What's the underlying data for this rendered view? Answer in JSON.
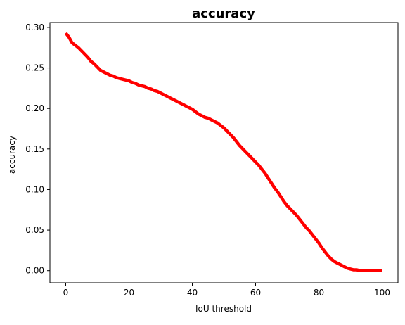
{
  "chart_data": {
    "type": "line",
    "title": "accuracy",
    "xlabel": "IoU threshold",
    "ylabel": "accuracy",
    "xlim": [
      -5,
      105
    ],
    "ylim": [
      -0.015,
      0.306
    ],
    "xticks": [
      0,
      20,
      40,
      60,
      80,
      100
    ],
    "yticks": [
      0.0,
      0.05,
      0.1,
      0.15,
      0.2,
      0.25,
      0.3
    ],
    "ytick_labels": [
      "0.00",
      "0.05",
      "0.10",
      "0.15",
      "0.20",
      "0.25",
      "0.30"
    ],
    "grid": false,
    "legend": "none",
    "series": [
      {
        "color": "#ff0000",
        "x": [
          0,
          1,
          2,
          3,
          4,
          5,
          6,
          7,
          8,
          9,
          10,
          11,
          12,
          13,
          14,
          15,
          16,
          17,
          18,
          19,
          20,
          21,
          22,
          23,
          24,
          25,
          26,
          27,
          28,
          29,
          30,
          31,
          32,
          33,
          34,
          35,
          36,
          37,
          38,
          39,
          40,
          41,
          42,
          43,
          44,
          45,
          46,
          47,
          48,
          49,
          50,
          51,
          52,
          53,
          54,
          55,
          56,
          57,
          58,
          59,
          60,
          61,
          62,
          63,
          64,
          65,
          66,
          67,
          68,
          69,
          70,
          71,
          72,
          73,
          74,
          75,
          76,
          77,
          78,
          79,
          80,
          81,
          82,
          83,
          84,
          85,
          86,
          87,
          88,
          89,
          90,
          91,
          92,
          93,
          94,
          95,
          96,
          97,
          98,
          99,
          100
        ],
        "y": [
          0.293,
          0.288,
          0.281,
          0.278,
          0.275,
          0.271,
          0.267,
          0.263,
          0.258,
          0.255,
          0.251,
          0.247,
          0.245,
          0.243,
          0.241,
          0.24,
          0.238,
          0.237,
          0.236,
          0.235,
          0.234,
          0.232,
          0.231,
          0.229,
          0.228,
          0.227,
          0.225,
          0.224,
          0.222,
          0.221,
          0.219,
          0.217,
          0.215,
          0.213,
          0.211,
          0.209,
          0.207,
          0.205,
          0.203,
          0.201,
          0.199,
          0.196,
          0.193,
          0.191,
          0.189,
          0.188,
          0.186,
          0.184,
          0.182,
          0.179,
          0.176,
          0.172,
          0.168,
          0.164,
          0.159,
          0.154,
          0.15,
          0.146,
          0.142,
          0.138,
          0.134,
          0.13,
          0.125,
          0.12,
          0.114,
          0.108,
          0.102,
          0.097,
          0.091,
          0.085,
          0.08,
          0.076,
          0.072,
          0.068,
          0.063,
          0.058,
          0.053,
          0.049,
          0.044,
          0.039,
          0.034,
          0.028,
          0.023,
          0.018,
          0.014,
          0.011,
          0.009,
          0.007,
          0.005,
          0.003,
          0.002,
          0.001,
          0.001,
          0.0,
          0.0,
          0.0,
          0.0,
          0.0,
          0.0,
          0.0,
          0.0
        ]
      }
    ]
  }
}
